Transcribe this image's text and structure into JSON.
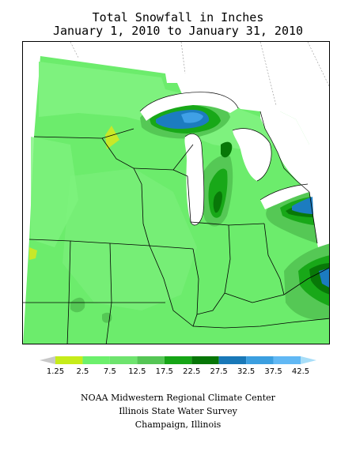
{
  "title": {
    "line1": "Total Snowfall in Inches",
    "line2": "January 1, 2010 to January 31, 2010"
  },
  "legend": {
    "ticks": [
      "1.25",
      "2.5",
      "7.5",
      "12.5",
      "17.5",
      "22.5",
      "27.5",
      "32.5",
      "37.5",
      "42.5"
    ],
    "colors": [
      "#c8c8c8",
      "#c6ec1a",
      "#6cf06c",
      "#6ee46e",
      "#55c655",
      "#16a516",
      "#067606",
      "#1978b8",
      "#3b9fe0",
      "#61b8f4",
      "#a8def8"
    ]
  },
  "map": {
    "palette": {
      "base": "#6cec6c",
      "light": "#7ef27e",
      "mid": "#55c855",
      "dark": "#18a818",
      "darker": "#087808",
      "blue": "#1c7cc0",
      "lightblue": "#3fa0e6",
      "yellow": "#c8e828"
    }
  },
  "credits": {
    "line1": "NOAA Midwestern Regional Climate Center",
    "line2": "Illinois State Water Survey",
    "line3": "Champaign, Illinois"
  }
}
